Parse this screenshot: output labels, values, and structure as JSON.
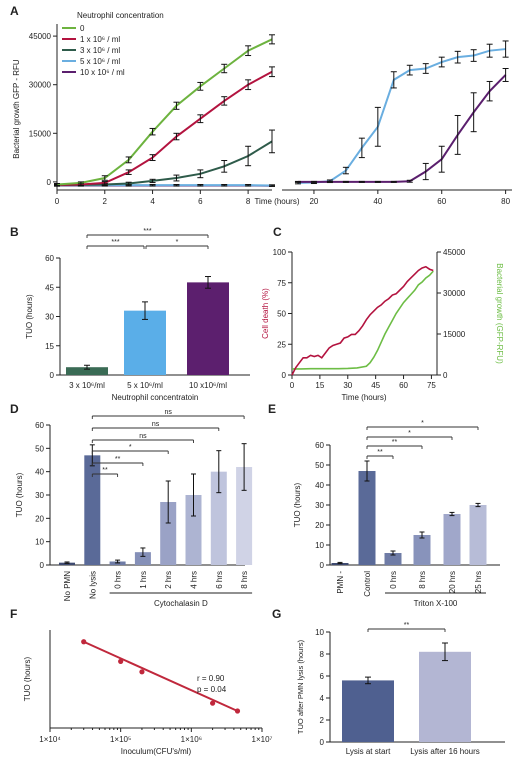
{
  "panels": {
    "A": "A",
    "B": "B",
    "C": "C",
    "D": "D",
    "E": "E",
    "F": "F",
    "G": "G"
  },
  "colors": {
    "green": "#6db33f",
    "crimson": "#b3133f",
    "darkgreen": "#2e5b4a",
    "lightblue": "#6aaee0",
    "purple": "#5b1f6e",
    "lightgreen_c": "#6dbd45",
    "slate": "#596a96",
    "bar_b_green": "#3a6b55",
    "bar_b_blue": "#5aaee8",
    "bar_b_purple": "#5c1f6e",
    "f_line": "#c0283c",
    "g_dark": "#4f6090",
    "g_light": "#b3b6d3"
  },
  "chart_data": [
    {
      "id": "A",
      "type": "line",
      "ylabel": "Bacterial growth GFP - RFU",
      "xlabel": "Time (hours)",
      "legend_title": "Neutrophil concentration",
      "yticks": [
        "0",
        "15000",
        "30000",
        "45000"
      ],
      "left": {
        "xticks": [
          "0",
          "2",
          "4",
          "6",
          "8"
        ],
        "xlim": [
          0,
          9
        ],
        "ylim": [
          -2500,
          47500
        ],
        "series": [
          {
            "name": "0",
            "color": "#6db33f",
            "x": [
              0,
              1,
              2,
              3,
              4,
              5,
              6,
              7,
              8,
              9
            ],
            "y": [
              -800,
              -300,
              1200,
              6800,
              15500,
              23500,
              29500,
              35000,
              40500,
              44000
            ],
            "err": [
              300,
              300,
              700,
              900,
              1000,
              1100,
              1200,
              1300,
              1500,
              1400
            ]
          },
          {
            "name": "1 x 10⁶ / ml",
            "color": "#b3133f",
            "x": [
              0,
              1,
              2,
              3,
              4,
              5,
              6,
              7,
              8,
              9
            ],
            "y": [
              -900,
              -800,
              -300,
              3000,
              7500,
              14000,
              19500,
              25000,
              30000,
              34000
            ],
            "err": [
              300,
              300,
              400,
              700,
              900,
              1000,
              1200,
              1300,
              1500,
              1500
            ]
          },
          {
            "name": "3 x 10⁶ / ml",
            "color": "#2e5b4a",
            "x": [
              0,
              1,
              2,
              3,
              4,
              5,
              6,
              7,
              8,
              9
            ],
            "y": [
              -1000,
              -900,
              -800,
              -500,
              300,
              1200,
              2500,
              4800,
              8000,
              12500
            ],
            "err": [
              300,
              300,
              300,
              400,
              500,
              900,
              1200,
              1800,
              3000,
              3500
            ]
          },
          {
            "name": "5 x 10⁶ / ml",
            "color": "#6aaee0",
            "x": [
              0,
              1,
              2,
              3,
              4,
              5,
              6,
              7,
              8,
              9
            ],
            "y": [
              -1000,
              -1000,
              -1000,
              -1000,
              -1000,
              -1000,
              -1000,
              -1000,
              -1000,
              -1100
            ],
            "err": [
              200,
              200,
              200,
              200,
              200,
              200,
              200,
              200,
              200,
              200
            ]
          },
          {
            "name": "10 x 10⁶ / ml",
            "color": "#5b1f6e",
            "x": [
              0,
              1,
              2,
              3,
              4,
              5,
              6,
              7,
              8,
              9
            ],
            "y": [
              -1100,
              -1100,
              -1100,
              -1100,
              -1100,
              -1100,
              -1100,
              -1100,
              -1100,
              -1200
            ],
            "err": [
              200,
              200,
              200,
              200,
              200,
              200,
              200,
              200,
              200,
              200
            ]
          }
        ]
      },
      "right": {
        "xticks": [
          "20",
          "40",
          "60",
          "80"
        ],
        "xlim": [
          10,
          82
        ],
        "ylim": [
          -2500,
          47500
        ],
        "series": [
          {
            "name": "5 x 10⁶ / ml",
            "color": "#6aaee0",
            "x": [
              15,
              20,
              25,
              30,
              35,
              40,
              45,
              50,
              55,
              60,
              65,
              70,
              75,
              80
            ],
            "y": [
              -300,
              -200,
              200,
              3500,
              10500,
              17000,
              31500,
              34500,
              35000,
              37000,
              38500,
              39000,
              40500,
              41000
            ],
            "err": [
              300,
              300,
              400,
              1000,
              3000,
              6000,
              2500,
              1500,
              1500,
              1500,
              1800,
              1800,
              2000,
              2500
            ]
          },
          {
            "name": "10 x 10⁶ / ml",
            "color": "#5b1f6e",
            "x": [
              15,
              20,
              25,
              30,
              35,
              40,
              45,
              50,
              55,
              60,
              65,
              70,
              75,
              80
            ],
            "y": [
              0,
              0,
              0,
              0,
              0,
              0,
              0,
              200,
              3200,
              7000,
              14500,
              21500,
              28000,
              33000
            ],
            "err": [
              150,
              150,
              150,
              150,
              150,
              150,
              150,
              300,
              2500,
              4000,
              6000,
              6000,
              3000,
              2000
            ]
          }
        ]
      }
    },
    {
      "id": "B",
      "type": "bar",
      "ylabel": "TUO (hours)",
      "xlabel": "Neutrophil concentratoin",
      "categories": [
        "3 x 10⁶/ml",
        "5 x 10⁶/ml",
        "10 x10⁶/ml"
      ],
      "values": [
        4,
        33,
        47.5
      ],
      "err": [
        1,
        4.5,
        3
      ],
      "ylim": [
        0,
        60
      ],
      "yticks": [
        "0",
        "15",
        "30",
        "45",
        "60"
      ],
      "sig": [
        {
          "from": 0,
          "to": 2,
          "label": "***"
        },
        {
          "from": 0,
          "to": 1,
          "label": "***"
        },
        {
          "from": 1,
          "to": 2,
          "label": "*"
        }
      ]
    },
    {
      "id": "C",
      "type": "line",
      "ylabel": "Cell death (%)",
      "ylabel_right": "Bacterial growth (GFP-RFU)",
      "xlabel": "Time (hours)",
      "xlim": [
        0,
        78
      ],
      "xticks": [
        "0",
        "15",
        "30",
        "45",
        "60",
        "75"
      ],
      "ylim": [
        0,
        100
      ],
      "yticks": [
        "0",
        "25",
        "50",
        "75",
        "100"
      ],
      "ylim_right": [
        0,
        45000
      ],
      "yticks_right": [
        "0",
        "15000",
        "30000",
        "45000"
      ],
      "series": [
        {
          "name": "Cell death",
          "axis": "left",
          "x": [
            0,
            2,
            4,
            6,
            8,
            10,
            12,
            14,
            16,
            18,
            20,
            22,
            24,
            26,
            28,
            30,
            32,
            34,
            36,
            38,
            40,
            42,
            44,
            46,
            48,
            50,
            52,
            54,
            56,
            58,
            60,
            62,
            64,
            66,
            68,
            70,
            72,
            74,
            76
          ],
          "y": [
            0,
            6,
            10,
            14,
            14,
            16,
            15,
            16,
            14,
            18,
            22,
            24,
            25,
            26,
            30,
            31,
            33,
            33,
            36,
            40,
            45,
            49,
            52,
            55,
            57,
            60,
            62,
            65,
            66,
            69,
            72,
            76,
            79,
            82,
            85,
            87,
            88,
            86,
            85
          ]
        },
        {
          "name": "Bacterial growth",
          "axis": "right",
          "x": [
            0,
            5,
            10,
            15,
            20,
            25,
            30,
            35,
            40,
            42,
            44,
            46,
            48,
            50,
            52,
            54,
            56,
            58,
            60,
            62,
            64,
            66,
            68,
            70,
            72,
            74,
            76
          ],
          "y": [
            2200,
            2200,
            2300,
            2300,
            2300,
            2300,
            2400,
            2600,
            3200,
            4500,
            6500,
            9000,
            12000,
            15000,
            17500,
            20000,
            22500,
            24500,
            26500,
            28000,
            29500,
            31000,
            33000,
            34000,
            35500,
            36500,
            38000
          ]
        }
      ]
    },
    {
      "id": "D",
      "type": "bar",
      "ylabel": "TUO (hours)",
      "categories": [
        "No PMN",
        "No lysis",
        "0 hrs",
        "1 hrs",
        "2 hrs",
        "4 hrs",
        "6 hrs",
        "8 hrs"
      ],
      "values": [
        1,
        47,
        1.5,
        5.5,
        27,
        30,
        40,
        42
      ],
      "err": [
        0.3,
        4.5,
        0.6,
        1.8,
        9,
        9,
        9,
        10
      ],
      "ylim": [
        0,
        60
      ],
      "yticks": [
        "0",
        "10",
        "20",
        "30",
        "40",
        "50",
        "60"
      ],
      "group_label": "Cytochalasin D",
      "sig": [
        {
          "from": 1,
          "to": 7,
          "label": "ns"
        },
        {
          "from": 1,
          "to": 6,
          "label": "ns"
        },
        {
          "from": 1,
          "to": 5,
          "label": "ns"
        },
        {
          "from": 1,
          "to": 4,
          "label": "*"
        },
        {
          "from": 1,
          "to": 3,
          "label": "**"
        },
        {
          "from": 1,
          "to": 2,
          "label": "**"
        }
      ]
    },
    {
      "id": "E",
      "type": "bar",
      "ylabel": "TUO (hours)",
      "categories": [
        "PMN -",
        "Control",
        "0 hrs",
        "8 hrs",
        "20 hrs",
        "25 hrs"
      ],
      "values": [
        1,
        47,
        6,
        15,
        25.5,
        30
      ],
      "err": [
        0.3,
        5,
        1,
        1.5,
        0.8,
        0.8
      ],
      "ylim": [
        0,
        60
      ],
      "yticks": [
        "0",
        "10",
        "20",
        "30",
        "40",
        "50",
        "60"
      ],
      "group_label": "Triton X-100",
      "sig": [
        {
          "from": 1,
          "to": 5,
          "label": "*"
        },
        {
          "from": 1,
          "to": 4,
          "label": "*"
        },
        {
          "from": 1,
          "to": 3,
          "label": "**"
        },
        {
          "from": 1,
          "to": 2,
          "label": "**"
        }
      ]
    },
    {
      "id": "F",
      "type": "scatter",
      "ylabel": "TUO (hours)",
      "xlabel": "Inoculum(CFU's/ml)",
      "xscale": "log",
      "xlim": [
        10000,
        10000000
      ],
      "xticks": [
        "1×10⁴",
        "1×10⁵",
        "1×10⁶",
        "1×10⁷"
      ],
      "x": [
        30000,
        100000,
        200000,
        2000000,
        4500000
      ],
      "y": [
        6.6,
        5.1,
        4.3,
        1.9,
        1.3
      ],
      "ylim": [
        0,
        7.5
      ],
      "stats": [
        "r = 0.90",
        "p = 0.04"
      ]
    },
    {
      "id": "G",
      "type": "bar",
      "ylabel": "TUO after PMN lysis (hours)",
      "categories": [
        "Lysis at start",
        "Lysis after 16 hours"
      ],
      "values": [
        5.6,
        8.2
      ],
      "err": [
        0.3,
        0.8
      ],
      "ylim": [
        0,
        10
      ],
      "yticks": [
        "0",
        "2",
        "4",
        "6",
        "8",
        "10"
      ],
      "sig": [
        {
          "from": 0,
          "to": 1,
          "label": "**"
        }
      ]
    }
  ]
}
